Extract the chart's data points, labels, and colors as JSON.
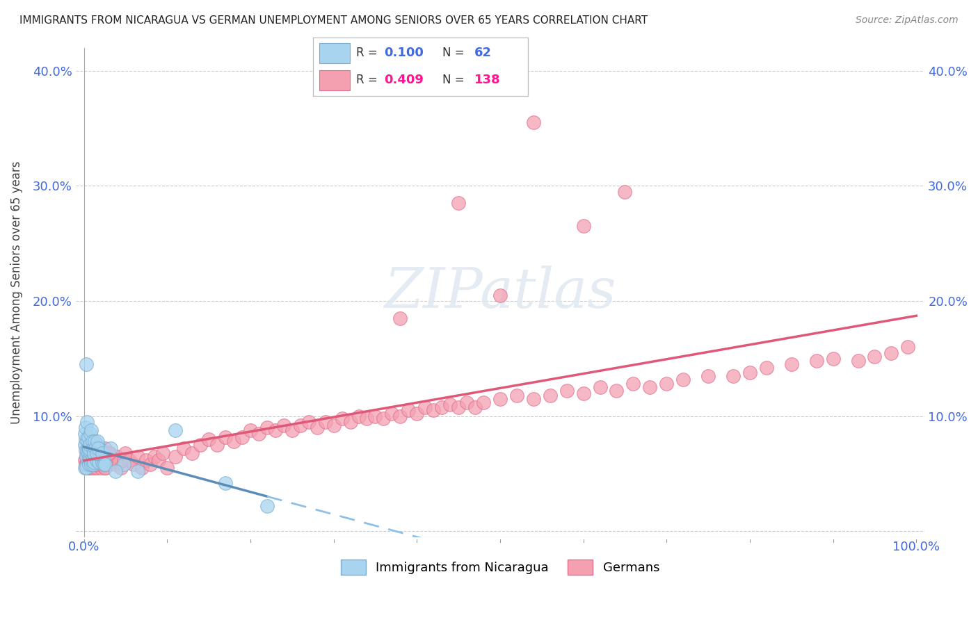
{
  "title": "IMMIGRANTS FROM NICARAGUA VS GERMAN UNEMPLOYMENT AMONG SENIORS OVER 65 YEARS CORRELATION CHART",
  "source": "Source: ZipAtlas.com",
  "ylabel": "Unemployment Among Seniors over 65 years",
  "xlim": [
    -0.01,
    1.01
  ],
  "ylim": [
    -0.005,
    0.42
  ],
  "yticks": [
    0.0,
    0.1,
    0.2,
    0.3,
    0.4
  ],
  "ytick_labels": [
    "",
    "10.0%",
    "20.0%",
    "30.0%",
    "40.0%"
  ],
  "xticks": [
    0.0,
    0.1,
    0.2,
    0.3,
    0.4,
    0.5,
    0.6,
    0.7,
    0.8,
    0.9,
    1.0
  ],
  "xtick_labels": [
    "0.0%",
    "",
    "",
    "",
    "",
    "",
    "",
    "",
    "",
    "",
    "100.0%"
  ],
  "color_blue": "#A8D4F0",
  "color_pink": "#F4A0B0",
  "color_blue_edge": "#7AAED0",
  "color_pink_edge": "#E07090",
  "color_trend_blue_solid": "#5B8DB8",
  "color_trend_blue_dash": "#8DC0E8",
  "color_trend_pink": "#E05878",
  "watermark": "ZIPatlas",
  "blue_x": [
    0.001,
    0.001,
    0.002,
    0.002,
    0.003,
    0.003,
    0.004,
    0.004,
    0.005,
    0.005,
    0.006,
    0.006,
    0.007,
    0.007,
    0.008,
    0.008,
    0.009,
    0.01,
    0.01,
    0.01,
    0.011,
    0.011,
    0.012,
    0.012,
    0.013,
    0.014,
    0.015,
    0.016,
    0.017,
    0.018,
    0.019,
    0.02,
    0.021,
    0.022,
    0.023,
    0.024,
    0.001,
    0.002,
    0.003,
    0.004,
    0.005,
    0.006,
    0.007,
    0.008,
    0.009,
    0.01,
    0.011,
    0.012,
    0.013,
    0.014,
    0.015,
    0.016,
    0.017,
    0.022,
    0.032,
    0.048,
    0.065,
    0.11,
    0.17,
    0.22,
    0.025,
    0.038
  ],
  "blue_y": [
    0.075,
    0.055,
    0.07,
    0.08,
    0.065,
    0.055,
    0.07,
    0.08,
    0.072,
    0.068,
    0.063,
    0.058,
    0.075,
    0.065,
    0.068,
    0.062,
    0.058,
    0.07,
    0.065,
    0.075,
    0.063,
    0.058,
    0.068,
    0.06,
    0.072,
    0.065,
    0.062,
    0.075,
    0.068,
    0.06,
    0.072,
    0.065,
    0.068,
    0.06,
    0.065,
    0.058,
    0.085,
    0.09,
    0.145,
    0.095,
    0.082,
    0.072,
    0.075,
    0.085,
    0.088,
    0.078,
    0.072,
    0.068,
    0.078,
    0.072,
    0.068,
    0.078,
    0.072,
    0.068,
    0.072,
    0.058,
    0.052,
    0.088,
    0.042,
    0.022,
    0.058,
    0.052
  ],
  "pink_x": [
    0.001,
    0.002,
    0.003,
    0.003,
    0.004,
    0.005,
    0.005,
    0.006,
    0.006,
    0.007,
    0.007,
    0.008,
    0.008,
    0.009,
    0.009,
    0.01,
    0.01,
    0.011,
    0.012,
    0.012,
    0.013,
    0.014,
    0.015,
    0.015,
    0.016,
    0.017,
    0.018,
    0.019,
    0.02,
    0.021,
    0.022,
    0.023,
    0.025,
    0.027,
    0.029,
    0.031,
    0.035,
    0.038,
    0.04,
    0.042,
    0.045,
    0.048,
    0.05,
    0.055,
    0.06,
    0.065,
    0.07,
    0.075,
    0.08,
    0.085,
    0.09,
    0.095,
    0.1,
    0.11,
    0.12,
    0.13,
    0.14,
    0.15,
    0.16,
    0.17,
    0.18,
    0.19,
    0.2,
    0.21,
    0.22,
    0.23,
    0.24,
    0.25,
    0.26,
    0.27,
    0.28,
    0.29,
    0.3,
    0.31,
    0.32,
    0.33,
    0.34,
    0.35,
    0.36,
    0.37,
    0.38,
    0.39,
    0.4,
    0.41,
    0.42,
    0.43,
    0.44,
    0.45,
    0.46,
    0.47,
    0.48,
    0.5,
    0.52,
    0.54,
    0.56,
    0.58,
    0.6,
    0.62,
    0.64,
    0.66,
    0.68,
    0.7,
    0.72,
    0.75,
    0.78,
    0.8,
    0.82,
    0.85,
    0.88,
    0.9,
    0.93,
    0.95,
    0.97,
    0.99,
    0.38,
    0.45,
    0.5,
    0.54,
    0.6,
    0.65,
    0.005,
    0.008,
    0.01,
    0.013,
    0.016,
    0.018,
    0.022,
    0.025,
    0.003,
    0.007,
    0.012,
    0.004,
    0.006,
    0.009,
    0.015,
    0.02,
    0.025,
    0.03
  ],
  "pink_y": [
    0.062,
    0.058,
    0.065,
    0.055,
    0.068,
    0.06,
    0.055,
    0.065,
    0.058,
    0.07,
    0.062,
    0.068,
    0.055,
    0.065,
    0.058,
    0.07,
    0.062,
    0.058,
    0.065,
    0.055,
    0.068,
    0.06,
    0.062,
    0.055,
    0.068,
    0.06,
    0.058,
    0.065,
    0.055,
    0.062,
    0.058,
    0.065,
    0.055,
    0.062,
    0.058,
    0.068,
    0.062,
    0.058,
    0.065,
    0.06,
    0.055,
    0.062,
    0.068,
    0.062,
    0.058,
    0.065,
    0.055,
    0.062,
    0.058,
    0.065,
    0.062,
    0.068,
    0.055,
    0.065,
    0.072,
    0.068,
    0.075,
    0.08,
    0.075,
    0.082,
    0.078,
    0.082,
    0.088,
    0.085,
    0.09,
    0.088,
    0.092,
    0.088,
    0.092,
    0.095,
    0.09,
    0.095,
    0.092,
    0.098,
    0.095,
    0.1,
    0.098,
    0.1,
    0.098,
    0.102,
    0.1,
    0.105,
    0.102,
    0.108,
    0.105,
    0.108,
    0.11,
    0.108,
    0.112,
    0.108,
    0.112,
    0.115,
    0.118,
    0.115,
    0.118,
    0.122,
    0.12,
    0.125,
    0.122,
    0.128,
    0.125,
    0.128,
    0.132,
    0.135,
    0.135,
    0.138,
    0.142,
    0.145,
    0.148,
    0.15,
    0.148,
    0.152,
    0.155,
    0.16,
    0.185,
    0.285,
    0.205,
    0.355,
    0.265,
    0.295,
    0.072,
    0.068,
    0.075,
    0.065,
    0.075,
    0.068,
    0.065,
    0.072,
    0.058,
    0.065,
    0.062,
    0.068,
    0.058,
    0.065,
    0.058,
    0.062,
    0.055,
    0.068
  ]
}
